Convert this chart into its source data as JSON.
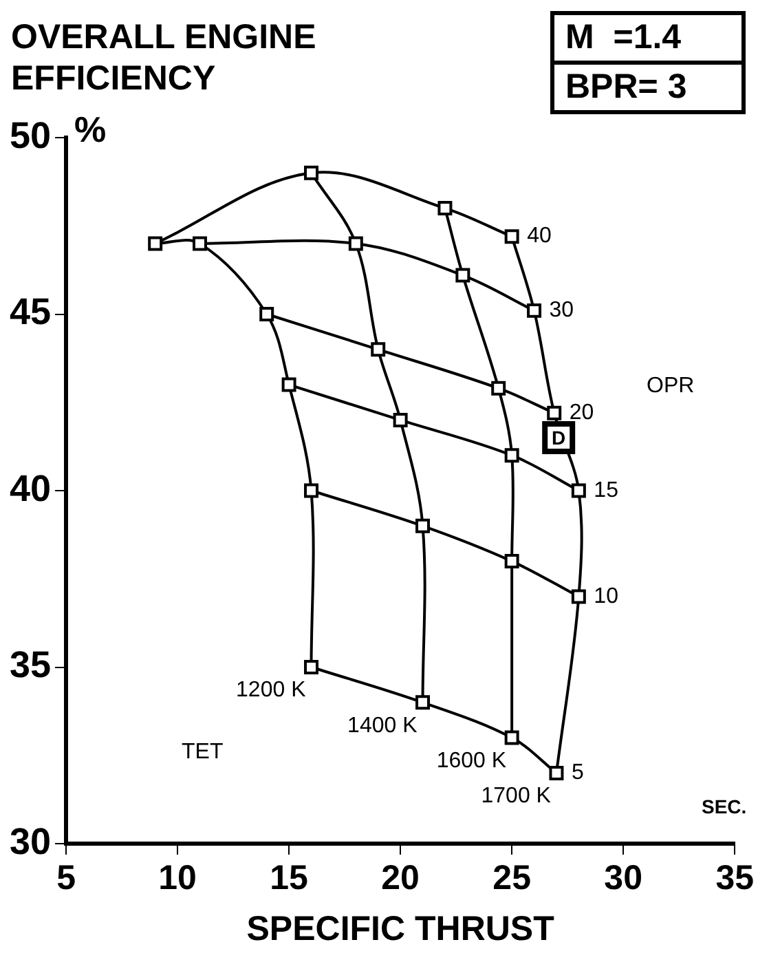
{
  "chart_data": {
    "type": "line",
    "title": "OVERALL ENGINE EFFICIENCY",
    "xlabel": "SPECIFIC THRUST",
    "ylabel": "%",
    "xlim": [
      5,
      35
    ],
    "xticks": [
      5,
      10,
      15,
      20,
      25,
      30,
      35
    ],
    "ylim": [
      30,
      50
    ],
    "yticks": [
      30,
      35,
      40,
      45,
      50
    ],
    "grid": false,
    "legend": false,
    "line_style": "solid",
    "series": [
      {
        "name": "5",
        "color": "#000000",
        "marker": "square",
        "x": [
          16,
          21,
          25,
          27
        ],
        "values": [
          35,
          34,
          33,
          32
        ]
      },
      {
        "name": "10",
        "color": "#000000",
        "marker": "square",
        "x": [
          16,
          21,
          25,
          28
        ],
        "values": [
          40,
          39,
          38,
          37
        ]
      },
      {
        "name": "15",
        "color": "#000000",
        "marker": "square",
        "x": [
          15,
          20,
          25,
          28
        ],
        "values": [
          43,
          42,
          41,
          40
        ]
      },
      {
        "name": "20",
        "color": "#000000",
        "marker": "square",
        "x": [
          14,
          19,
          24.4,
          26.9
        ],
        "values": [
          45,
          44,
          42.9,
          42.2
        ]
      },
      {
        "name": "30",
        "color": "#000000",
        "marker": "square",
        "x": [
          11,
          18,
          22.8,
          26
        ],
        "values": [
          47,
          47,
          46.1,
          45.1
        ]
      },
      {
        "name": "40",
        "color": "#000000",
        "marker": "square",
        "x": [
          9,
          16,
          22,
          25
        ],
        "values": [
          47,
          49,
          48,
          47.2
        ]
      },
      {
        "name": "1200 K",
        "color": "#000000",
        "marker": "none",
        "x": [
          9,
          11,
          14,
          15,
          16,
          16
        ],
        "values": [
          47,
          47,
          45,
          43,
          40,
          35
        ]
      },
      {
        "name": "1400 K",
        "color": "#000000",
        "marker": "none",
        "x": [
          16,
          18,
          19,
          20,
          21,
          21
        ],
        "values": [
          49,
          47,
          44,
          42,
          39,
          34
        ]
      },
      {
        "name": "1600 K",
        "color": "#000000",
        "marker": "none",
        "x": [
          22,
          22.8,
          24.4,
          25,
          25,
          25
        ],
        "values": [
          48,
          46.1,
          42.9,
          41,
          38,
          33
        ]
      },
      {
        "name": "1700 K",
        "color": "#000000",
        "marker": "none",
        "x": [
          25,
          26,
          26.9,
          28,
          28,
          27
        ],
        "values": [
          47.2,
          45.1,
          42.2,
          40,
          37,
          32
        ]
      }
    ],
    "annotations": [
      "M  =1.4",
      "BPR= 3",
      "OPR",
      "TET",
      "SEC.",
      {
        "text": "D",
        "x": 27.1,
        "y": 41.5
      }
    ]
  }
}
